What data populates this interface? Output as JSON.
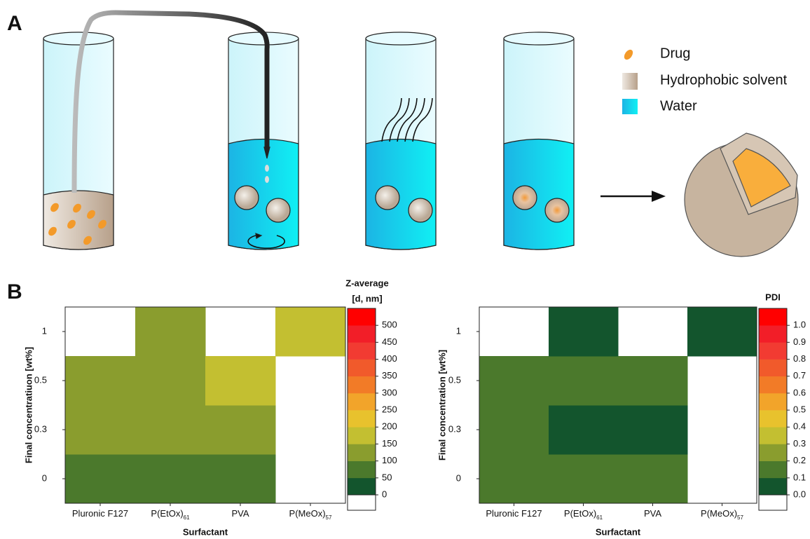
{
  "panel_labels": [
    "A",
    "B"
  ],
  "legend": [
    "Drug",
    "Hydrophobic solvent",
    "Water"
  ],
  "chart_data": [
    {
      "type": "heatmap",
      "colorbar_title": [
        "Z-average",
        "[d, nm]"
      ],
      "x_label": "Surfactant",
      "y_label": "Final concentratiuon [wt%]",
      "categories": [
        "Pluronic F127",
        "P(EtOx)",
        "PVA",
        "P(MeOx)"
      ],
      "category_subscripts": [
        null,
        "61",
        null,
        "57"
      ],
      "y_categories": [
        "0",
        "0.3",
        "0.5",
        "1"
      ],
      "values": [
        [
          80,
          80,
          80,
          null
        ],
        [
          120,
          120,
          120,
          null
        ],
        [
          120,
          120,
          170,
          null
        ],
        [
          null,
          120,
          null,
          170
        ]
      ],
      "zlim": [
        0,
        550
      ],
      "zticks": [
        0,
        50,
        100,
        150,
        200,
        250,
        300,
        350,
        400,
        450,
        500
      ],
      "colors": [
        "#13552d",
        "#4b792c",
        "#8a9d2e",
        "#c3bf31",
        "#e8c22d",
        "#f2a42a",
        "#f27b27",
        "#f15a2b",
        "#f23b32",
        "#f21e28",
        "#ff0000"
      ]
    },
    {
      "type": "heatmap",
      "colorbar_title": [
        "PDI"
      ],
      "x_label": "Surfactant",
      "y_label": "Final concentration [wt%]",
      "categories": [
        "Pluronic F127",
        "P(EtOx)",
        "PVA",
        "P(MeOx)"
      ],
      "category_subscripts": [
        null,
        "61",
        null,
        "57"
      ],
      "y_categories": [
        "0",
        "0.3",
        "0.5",
        "1"
      ],
      "values": [
        [
          0.15,
          0.15,
          0.15,
          null
        ],
        [
          0.15,
          0.05,
          0.05,
          null
        ],
        [
          0.15,
          0.15,
          0.15,
          null
        ],
        [
          null,
          0.05,
          null,
          0.05
        ]
      ],
      "zlim": [
        0,
        1.1
      ],
      "zticks": [
        {
          "value": 0,
          "label": "0.0"
        },
        0.1,
        0.2,
        0.3,
        0.4,
        0.5,
        0.6,
        0.7,
        0.8,
        0.9,
        {
          "value": 1,
          "label": "1.0"
        }
      ],
      "colors": [
        "#13552d",
        "#4b792c",
        "#8a9d2e",
        "#c3bf31",
        "#e8c22d",
        "#f2a42a",
        "#f27b27",
        "#f15a2b",
        "#f23b32",
        "#f21e28",
        "#ff0000"
      ]
    }
  ]
}
